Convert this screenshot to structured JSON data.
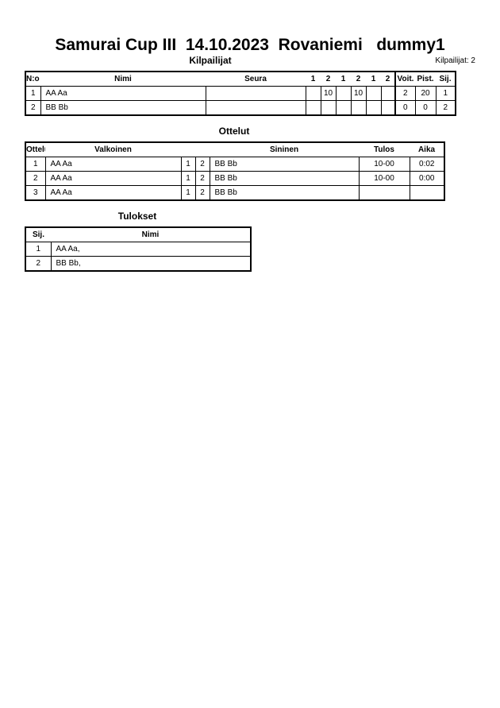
{
  "title": "Samurai Cup III  14.10.2023  Rovaniemi   dummy1",
  "competitors": {
    "heading": "Kilpailijat",
    "count_label": "Kilpailijat: 2",
    "headers": {
      "no": "N:o",
      "name": "Nimi",
      "club": "Seura",
      "rounds": [
        "1",
        "2",
        "1",
        "2",
        "1",
        "2"
      ],
      "wins": "Voit.",
      "points": "Pist.",
      "rank": "Sij."
    },
    "rows": [
      {
        "no": "1",
        "name": "AA Aa",
        "club": "",
        "rounds": [
          "",
          "10",
          "",
          "10",
          "",
          ""
        ],
        "wins": "2",
        "points": "20",
        "rank": "1"
      },
      {
        "no": "2",
        "name": "BB Bb",
        "club": "",
        "rounds": [
          "",
          "",
          "",
          "",
          "",
          ""
        ],
        "wins": "0",
        "points": "0",
        "rank": "2"
      }
    ]
  },
  "matches": {
    "heading": "Ottelut",
    "headers": {
      "match": "Ottelu",
      "white": "Valkoinen",
      "blue": "Sininen",
      "result": "Tulos",
      "time": "Aika"
    },
    "rows": [
      {
        "match": "1",
        "white": "AA Aa",
        "w_no": "1",
        "b_no": "2",
        "blue": "BB Bb",
        "result": "10-00",
        "time": "0:02"
      },
      {
        "match": "2",
        "white": "AA Aa",
        "w_no": "1",
        "b_no": "2",
        "blue": "BB Bb",
        "result": "10-00",
        "time": "0:00"
      },
      {
        "match": "3",
        "white": "AA Aa",
        "w_no": "1",
        "b_no": "2",
        "blue": "BB Bb",
        "result": "",
        "time": ""
      }
    ]
  },
  "results": {
    "heading": "Tulokset",
    "headers": {
      "rank": "Sij.",
      "name": "Nimi"
    },
    "rows": [
      {
        "rank": "1",
        "name": "AA Aa,"
      },
      {
        "rank": "2",
        "name": "BB Bb,"
      }
    ]
  }
}
